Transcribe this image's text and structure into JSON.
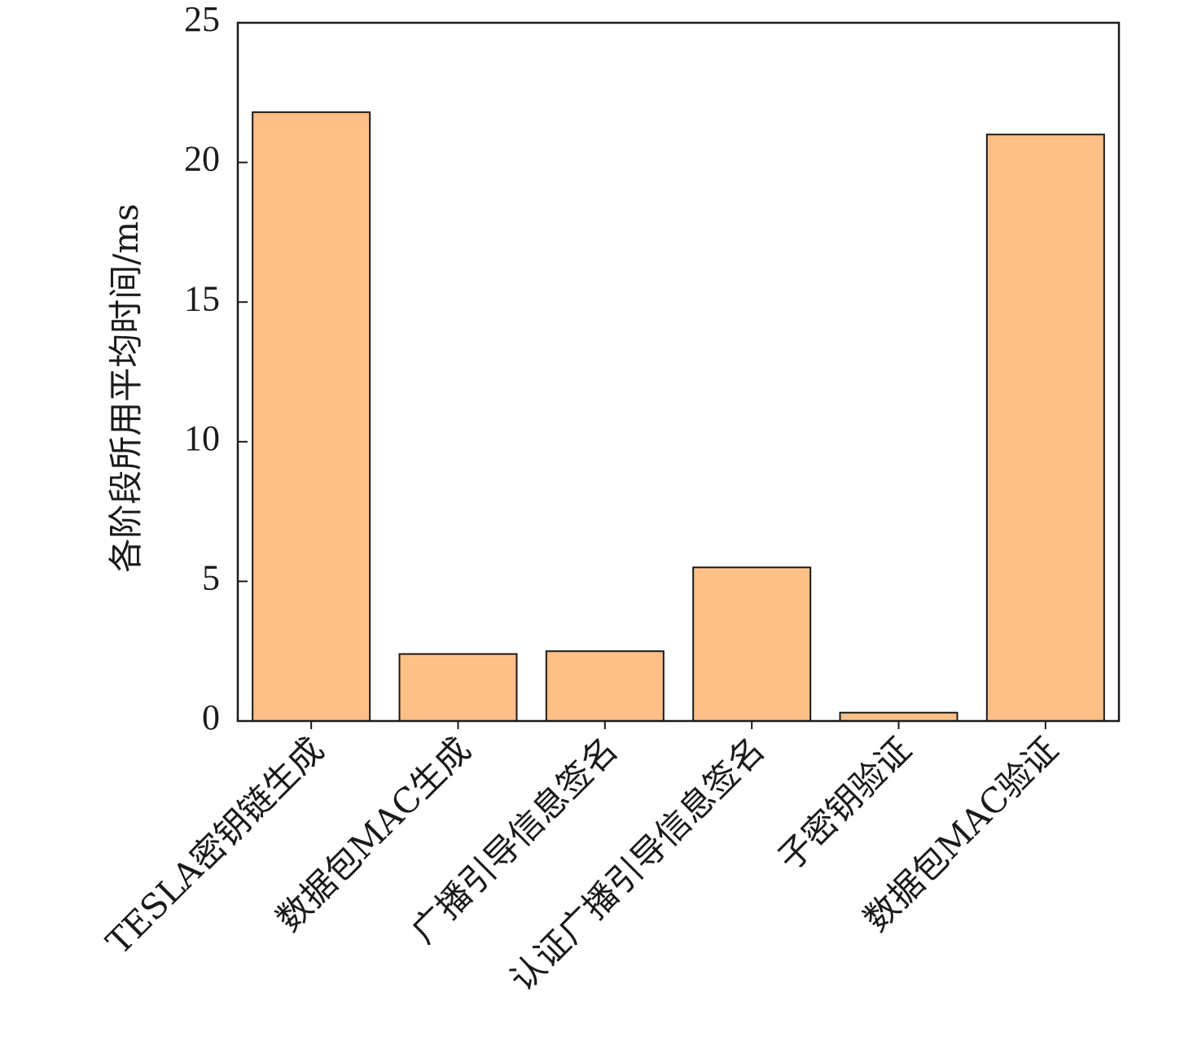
{
  "chart_data": {
    "type": "bar",
    "title": "",
    "xlabel": "",
    "ylabel": "各阶段所用平均时间/ms",
    "categories": [
      "TESLA密钥链生成",
      "数据包MAC生成",
      "广播引导信息签名",
      "认证广播引导信息签名",
      "子密钥验证",
      "数据包MAC验证"
    ],
    "values": [
      21.8,
      2.4,
      2.5,
      5.5,
      0.3,
      21.0
    ],
    "ylim": [
      0,
      25
    ],
    "yticks": [
      0,
      5,
      10,
      15,
      20,
      25
    ],
    "grid": false,
    "legend": "none",
    "colors": {
      "bar_fill": "#FFBF86",
      "bar_stroke": "#1a1a1a",
      "axis": "#1a1a1a",
      "text": "#1a1a1a"
    }
  }
}
